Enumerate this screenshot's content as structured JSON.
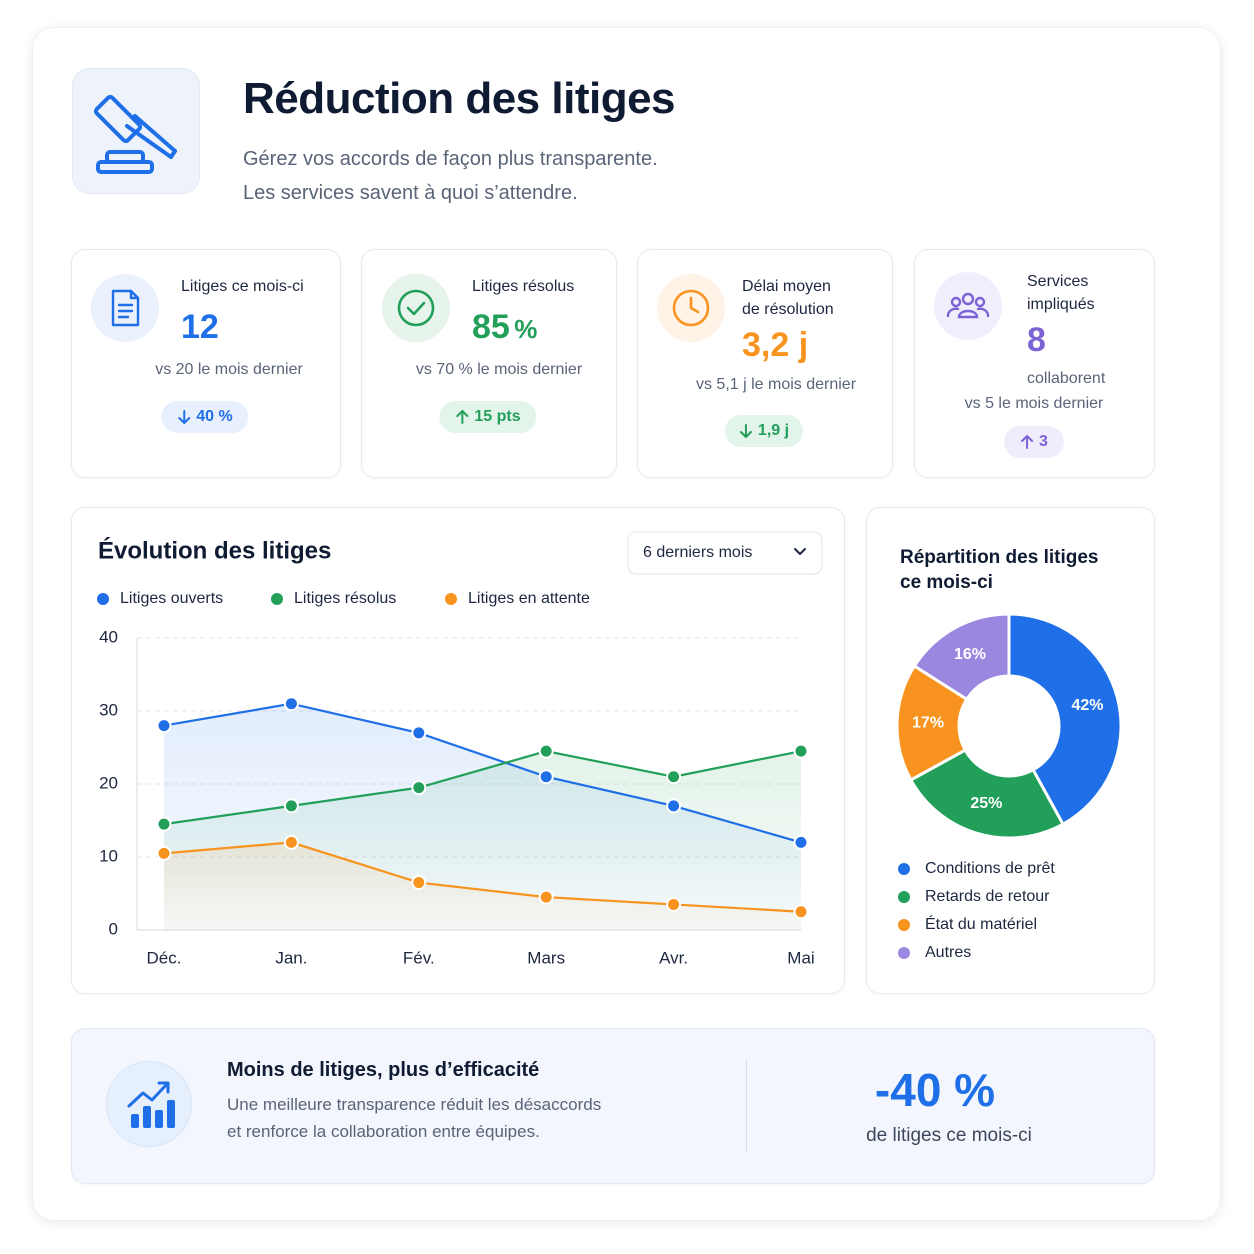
{
  "header": {
    "title": "Réduction des litiges",
    "subtitle_lines": [
      "Gérez vos accords de façon plus transparente.",
      "Les services savent à quoi s’attendre."
    ]
  },
  "kpis": [
    {
      "label": [
        "Litiges ce mois-ci"
      ],
      "value": "12",
      "comparison": "vs 20 le mois dernier",
      "delta": "40 %"
    },
    {
      "label": [
        "Litiges résolus"
      ],
      "value": "85",
      "unit": "%",
      "comparison": "vs 70 % le mois dernier",
      "delta": "15 pts"
    },
    {
      "label": [
        "Délai moyen",
        "de résolution"
      ],
      "value": "3,2 j",
      "comparison": "vs 5,1 j le mois dernier",
      "delta": "1,9 j"
    },
    {
      "label": [
        "Services",
        "impliqués"
      ],
      "value": "8",
      "note": "collaborent",
      "comparison": "vs 5 le mois dernier",
      "delta": "3"
    }
  ],
  "chart_data": [
    {
      "type": "line",
      "title": "Évolution des litiges",
      "dropdown": "6 derniers mois",
      "categories": [
        "Déc.",
        "Jan.",
        "Fév.",
        "Mars",
        "Avr.",
        "Mai"
      ],
      "series": [
        {
          "name": "Litiges ouverts",
          "color": "#1f6fe8",
          "values": [
            28,
            31,
            27,
            21,
            17,
            12
          ]
        },
        {
          "name": "Litiges résolus",
          "color": "#22a05a",
          "values": [
            14.5,
            17,
            19.5,
            24.5,
            21,
            24.5
          ]
        },
        {
          "name": "Litiges en attente",
          "color": "#f7931e",
          "values": [
            10.5,
            12,
            6.5,
            4.5,
            3.5,
            2.5
          ]
        }
      ],
      "ylim": [
        0,
        40
      ],
      "yticks": [
        0,
        10,
        20,
        30,
        40
      ],
      "grid": true,
      "area": true
    },
    {
      "type": "donut",
      "title": "Répartition des litiges ce mois-ci",
      "categories": [
        "Conditions de prêt",
        "Retards de retour",
        "État du matériel",
        "Autres"
      ],
      "values": [
        42,
        25,
        17,
        16
      ],
      "value_labels": [
        "42%",
        "25%",
        "17%",
        "16%"
      ],
      "colors": [
        "#1f6fe8",
        "#22a05a",
        "#f7931e",
        "#9b87e0"
      ]
    }
  ],
  "footer": {
    "title": "Moins de litiges, plus d’efficacité",
    "text_lines": [
      "Une meilleure transparence réduit les désaccords",
      "et renforce la collaboration entre équipes."
    ],
    "value": "-40 %",
    "caption": "de litiges ce mois-ci"
  }
}
